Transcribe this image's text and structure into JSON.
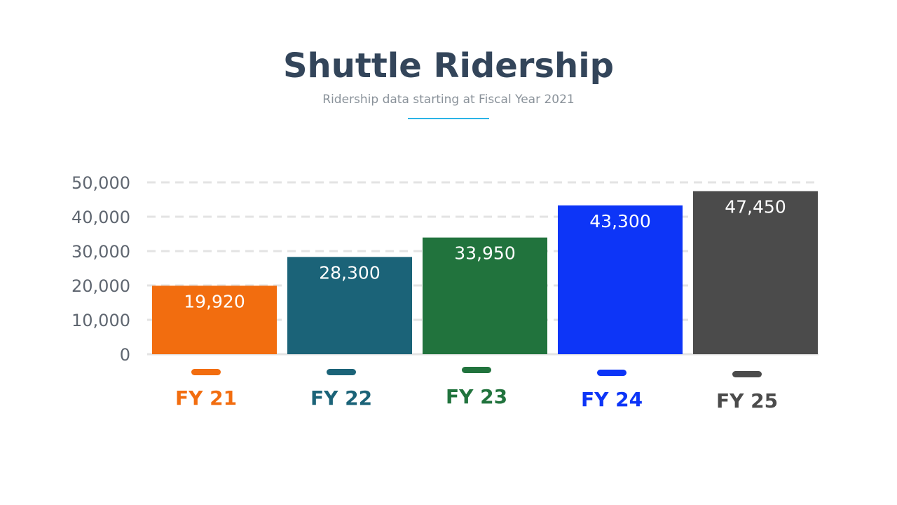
{
  "header": {
    "title": "Shuttle Ridership",
    "subtitle": "Ridership data starting at Fiscal Year 2021"
  },
  "colors": {
    "title": "#33455a",
    "subtitle": "#8a929a",
    "accent_rule": "#2bb3e6",
    "gridline": "#e3e3e3",
    "tick_label": "#5f6670"
  },
  "chart_data": {
    "type": "bar",
    "title": "Shuttle Ridership",
    "subtitle": "Ridership data starting at Fiscal Year 2021",
    "categories": [
      "FY 21",
      "FY 22",
      "FY 23",
      "FY 24",
      "FY 25"
    ],
    "values": [
      19920,
      28300,
      33950,
      43300,
      47450
    ],
    "value_labels": [
      "19,920",
      "28,300",
      "33,950",
      "43,300",
      "47,450"
    ],
    "bar_colors": [
      "#f26d0f",
      "#1b6378",
      "#21733d",
      "#0d35f7",
      "#4b4b4b"
    ],
    "ylim": [
      0,
      50000
    ],
    "yticks": [
      0,
      10000,
      20000,
      30000,
      40000,
      50000
    ],
    "ytick_labels": [
      "0",
      "10,000",
      "20,000",
      "30,000",
      "40,000",
      "50,000"
    ],
    "grid": true,
    "grid_style": "dashed",
    "legend": "none",
    "xlabel": "",
    "ylabel": ""
  }
}
